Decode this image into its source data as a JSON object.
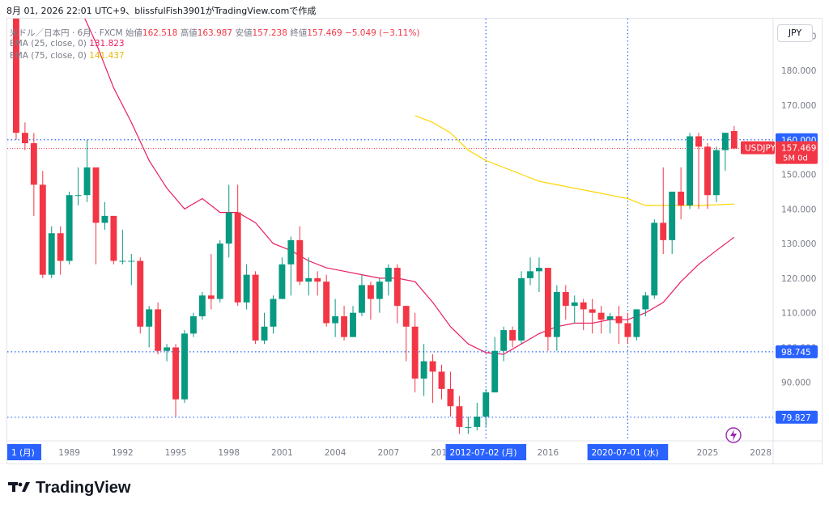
{
  "header": {
    "text": "8月 01, 2026 22:01 UTC+9、blissfulFish3901がTradingView.comで作成"
  },
  "legend": {
    "symbol": "米ドル／日本円 · 6月 · FXCM",
    "open_label": "始値",
    "open": "162.518",
    "high_label": "高値",
    "high": "163.987",
    "low_label": "安値",
    "low": "157.238",
    "close_label": "終値",
    "close": "157.469",
    "change": "−5.049 (−3.11%)",
    "ema25_label": "EMA (25, close, 0)",
    "ema25_value": "131.823",
    "ema75_label": "EMA (75, close, 0)",
    "ema75_value": "141.437"
  },
  "currency_button": "JPY",
  "price_axis": {
    "ticks": [
      "190.000",
      "180.000",
      "170.000",
      "160.000",
      "150.000",
      "140.000",
      "130.000",
      "120.000",
      "110.000",
      "100.000",
      "90.000",
      "80.000"
    ],
    "badges": [
      {
        "label": "160.000",
        "kind": "line",
        "color": "#2962ff",
        "price": 160
      },
      {
        "label": "98.745",
        "kind": "line",
        "color": "#2962ff",
        "price": 98.745
      },
      {
        "label": "79.827",
        "kind": "line",
        "color": "#2962ff",
        "price": 79.827
      }
    ],
    "symbol_badge": {
      "symbol": "USDJPY",
      "price": "157.469",
      "countdown": "5M 0d",
      "color": "#f23645"
    }
  },
  "time_axis": {
    "ticks": [
      {
        "label": "1 (月)",
        "year": 1985.6,
        "highlight": true
      },
      {
        "label": "1989",
        "year": 1989
      },
      {
        "label": "1992",
        "year": 1992
      },
      {
        "label": "1995",
        "year": 1995
      },
      {
        "label": "1998",
        "year": 1998
      },
      {
        "label": "2001",
        "year": 2001
      },
      {
        "label": "2004",
        "year": 2004
      },
      {
        "label": "2007",
        "year": 2007
      },
      {
        "label": "2010",
        "year": 2010
      },
      {
        "label": "2012-07-02 (月)",
        "year": 2012.5,
        "highlight": true
      },
      {
        "label": "2016",
        "year": 2016
      },
      {
        "label": "2020-07-01 (水)",
        "year": 2020.5,
        "highlight": true
      },
      {
        "label": "2025",
        "year": 2025
      },
      {
        "label": "2028",
        "year": 2028
      }
    ]
  },
  "chart_data": {
    "type": "candlestick",
    "symbol": "USDJPY",
    "timeframe": "6M",
    "x_unit": "year (half-year candles)",
    "ylim": [
      73,
      195
    ],
    "xlim": [
      1985.5,
      2028.7
    ],
    "horizontal_lines": [
      160.0,
      98.745,
      79.827
    ],
    "last_price_line": 157.469,
    "vertical_lines": [
      2012.5,
      2020.5
    ],
    "candles": [
      [
        1985.5,
        238,
        242,
        200,
        200
      ],
      [
        1986.0,
        200,
        202,
        160,
        162
      ],
      [
        1986.5,
        162,
        165,
        157,
        159
      ],
      [
        1987.0,
        159,
        162,
        138,
        147
      ],
      [
        1987.5,
        147,
        151,
        120,
        121
      ],
      [
        1988.0,
        121,
        135,
        120,
        133
      ],
      [
        1988.5,
        133,
        135,
        121,
        125
      ],
      [
        1989.0,
        125,
        145,
        124,
        144
      ],
      [
        1989.5,
        144,
        152,
        141,
        144
      ],
      [
        1990.0,
        144,
        160,
        142,
        152
      ],
      [
        1990.5,
        152,
        152,
        124,
        136
      ],
      [
        1991.0,
        136,
        142,
        134,
        138
      ],
      [
        1991.5,
        138,
        138,
        124,
        125
      ],
      [
        1992.0,
        125,
        134,
        124,
        125
      ],
      [
        1992.5,
        125,
        127,
        118,
        125
      ],
      [
        1993.0,
        125,
        126,
        104,
        106
      ],
      [
        1993.5,
        106,
        112,
        100,
        111
      ],
      [
        1994.0,
        111,
        113,
        98,
        99
      ],
      [
        1994.5,
        99,
        101,
        96,
        100
      ],
      [
        1995.0,
        100,
        101,
        80,
        85
      ],
      [
        1995.5,
        85,
        105,
        84,
        104
      ],
      [
        1996.0,
        104,
        110,
        103,
        109
      ],
      [
        1996.5,
        109,
        116,
        108,
        115
      ],
      [
        1997.0,
        115,
        127,
        111,
        114
      ],
      [
        1997.5,
        114,
        131,
        113,
        130
      ],
      [
        1998.0,
        130,
        147,
        126,
        139
      ],
      [
        1998.5,
        139,
        147,
        112,
        113
      ],
      [
        1999.0,
        113,
        124,
        111,
        121
      ],
      [
        1999.5,
        121,
        122,
        101,
        102
      ],
      [
        2000.0,
        102,
        110,
        101,
        106
      ],
      [
        2000.5,
        106,
        115,
        104,
        114
      ],
      [
        2001.0,
        114,
        126,
        114,
        124
      ],
      [
        2001.5,
        124,
        132,
        115,
        131
      ],
      [
        2002.0,
        131,
        135,
        118,
        119
      ],
      [
        2002.5,
        119,
        126,
        115,
        120
      ],
      [
        2003.0,
        120,
        122,
        115,
        119
      ],
      [
        2003.5,
        119,
        121,
        106,
        107
      ],
      [
        2004.0,
        107,
        114,
        103,
        109
      ],
      [
        2004.5,
        109,
        112,
        102,
        103
      ],
      [
        2005.0,
        103,
        112,
        103,
        110
      ],
      [
        2005.5,
        110,
        121,
        109,
        118
      ],
      [
        2006.0,
        118,
        119,
        108,
        114
      ],
      [
        2006.5,
        114,
        120,
        110,
        119
      ],
      [
        2007.0,
        119,
        124,
        115,
        123
      ],
      [
        2007.5,
        123,
        124,
        107,
        112
      ],
      [
        2008.0,
        112,
        112,
        96,
        106
      ],
      [
        2008.5,
        106,
        110,
        87,
        91
      ],
      [
        2009.0,
        91,
        101,
        86,
        96
      ],
      [
        2009.5,
        96,
        98,
        84,
        93
      ],
      [
        2010.0,
        93,
        95,
        85,
        88
      ],
      [
        2010.5,
        88,
        93,
        80,
        83
      ],
      [
        2011.0,
        83,
        86,
        75,
        77
      ],
      [
        2011.5,
        77,
        80,
        75,
        77
      ],
      [
        2012.0,
        77,
        84,
        76,
        80
      ],
      [
        2012.5,
        80,
        88,
        77,
        87
      ],
      [
        2013.0,
        87,
        103,
        87,
        99
      ],
      [
        2013.5,
        99,
        106,
        96,
        105
      ],
      [
        2014.0,
        105,
        106,
        100,
        102
      ],
      [
        2014.5,
        102,
        122,
        101,
        120
      ],
      [
        2015.0,
        120,
        126,
        118,
        122
      ],
      [
        2015.5,
        122,
        126,
        116,
        123
      ],
      [
        2016.0,
        123,
        123,
        99,
        103
      ],
      [
        2016.5,
        103,
        118,
        99,
        116
      ],
      [
        2017.0,
        116,
        118,
        108,
        112
      ],
      [
        2017.5,
        112,
        115,
        107,
        113
      ],
      [
        2018.0,
        113,
        114,
        105,
        111
      ],
      [
        2018.5,
        111,
        114,
        104,
        110
      ],
      [
        2019.0,
        110,
        112,
        104,
        108
      ],
      [
        2019.5,
        108,
        110,
        104,
        109
      ],
      [
        2020.0,
        109,
        112,
        101,
        107
      ],
      [
        2020.5,
        107,
        110,
        101,
        103
      ],
      [
        2021.0,
        103,
        111,
        102,
        111
      ],
      [
        2021.5,
        111,
        116,
        109,
        115
      ],
      [
        2022.0,
        115,
        137,
        114,
        136
      ],
      [
        2022.5,
        136,
        152,
        127,
        131
      ],
      [
        2023.0,
        131,
        145,
        127,
        145
      ],
      [
        2023.5,
        145,
        152,
        137,
        141
      ],
      [
        2024.0,
        141,
        162,
        140,
        161
      ],
      [
        2024.5,
        161,
        162,
        140,
        158
      ],
      [
        2025.0,
        158,
        159,
        140,
        144
      ],
      [
        2025.5,
        144,
        158,
        142,
        157
      ],
      [
        2026.0,
        157,
        162,
        151,
        162
      ],
      [
        2026.5,
        162.518,
        163.987,
        157.238,
        157.469
      ]
    ],
    "ema25": [
      [
        1989.7,
        197
      ],
      [
        1990.5,
        188
      ],
      [
        1991.5,
        175
      ],
      [
        1992.5,
        165
      ],
      [
        1993.5,
        154
      ],
      [
        1994.5,
        146
      ],
      [
        1995.5,
        140
      ],
      [
        1996.5,
        143
      ],
      [
        1997.5,
        139
      ],
      [
        1998.5,
        139
      ],
      [
        1999.5,
        136
      ],
      [
        2000.5,
        130
      ],
      [
        2001.5,
        128
      ],
      [
        2002.5,
        125
      ],
      [
        2003.5,
        123
      ],
      [
        2004.5,
        122
      ],
      [
        2005.5,
        121
      ],
      [
        2006.5,
        120
      ],
      [
        2007.5,
        120
      ],
      [
        2008.5,
        119
      ],
      [
        2009.5,
        113
      ],
      [
        2010.5,
        106
      ],
      [
        2011.5,
        101
      ],
      [
        2012.5,
        98.5
      ],
      [
        2013.5,
        98
      ],
      [
        2014.5,
        101
      ],
      [
        2015.5,
        104
      ],
      [
        2016.5,
        106
      ],
      [
        2017.5,
        107
      ],
      [
        2018.5,
        107
      ],
      [
        2019.5,
        108
      ],
      [
        2020.5,
        108
      ],
      [
        2021.5,
        110
      ],
      [
        2022.5,
        113
      ],
      [
        2023.5,
        119
      ],
      [
        2024.5,
        124
      ],
      [
        2025.5,
        128
      ],
      [
        2026.5,
        131.823
      ]
    ],
    "ema75": [
      [
        2008.5,
        167
      ],
      [
        2009.5,
        165
      ],
      [
        2010.5,
        162
      ],
      [
        2011.5,
        157
      ],
      [
        2012.5,
        154
      ],
      [
        2013.5,
        152
      ],
      [
        2014.5,
        150
      ],
      [
        2015.5,
        148
      ],
      [
        2016.5,
        147
      ],
      [
        2017.5,
        146
      ],
      [
        2018.5,
        145
      ],
      [
        2019.5,
        144
      ],
      [
        2020.5,
        143
      ],
      [
        2021.5,
        141
      ],
      [
        2022.5,
        141
      ],
      [
        2023.5,
        141
      ],
      [
        2024.5,
        141
      ],
      [
        2025.5,
        141.2
      ],
      [
        2026.5,
        141.437
      ]
    ],
    "colors": {
      "up": "#089981",
      "down": "#f23645",
      "ema25": "#e91e63",
      "ema75": "#ffd400"
    }
  },
  "footer": {
    "brand": "TradingView"
  }
}
